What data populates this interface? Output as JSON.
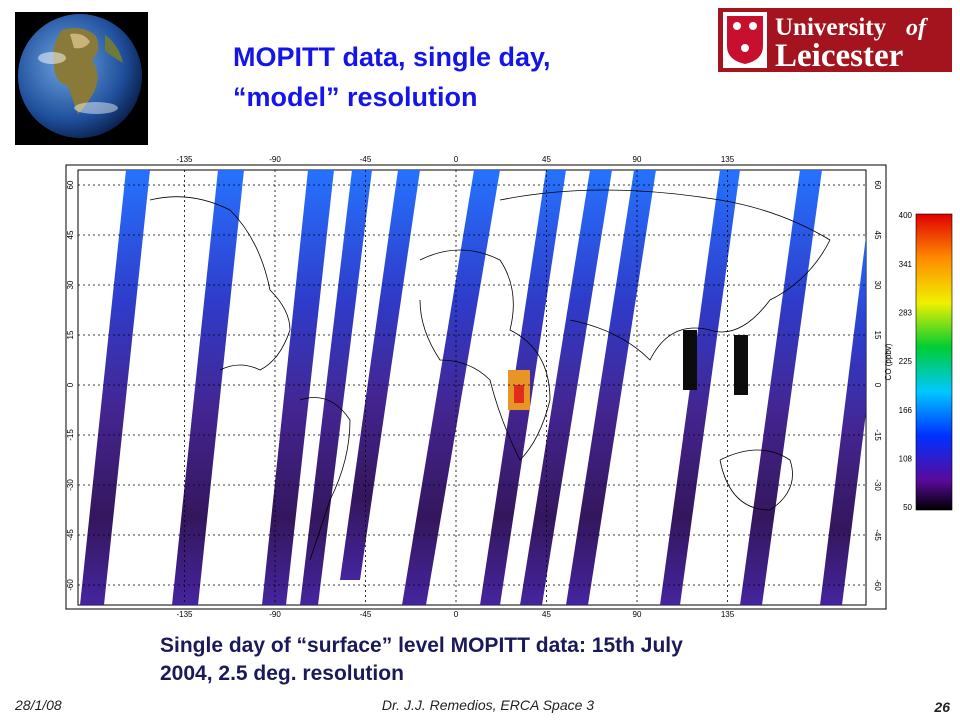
{
  "header": {
    "title_lines": [
      "MOPITT data, single day,",
      "“model” resolution"
    ],
    "logo": {
      "university": "University",
      "of": "of",
      "name": "Leicester"
    }
  },
  "map": {
    "lon_ticks": [
      "-135",
      "-90",
      "-45",
      "0",
      "45",
      "90",
      "135"
    ],
    "lat_ticks": [
      "60",
      "45",
      "30",
      "15",
      "0",
      "-15",
      "-30",
      "-45",
      "-60"
    ],
    "colorbar": {
      "label": "CO (ppbv)",
      "ticks": [
        "400",
        "341",
        "283",
        "225",
        "166",
        "108",
        "50"
      ]
    }
  },
  "caption": [
    "Single day of “surface” level  MOPITT data: 15th July",
    "2004, 2.5 deg. resolution"
  ],
  "footer": {
    "date": "28/1/08",
    "author": "Dr. J.J. Remedios, ERCA Space 3",
    "page": "26"
  }
}
